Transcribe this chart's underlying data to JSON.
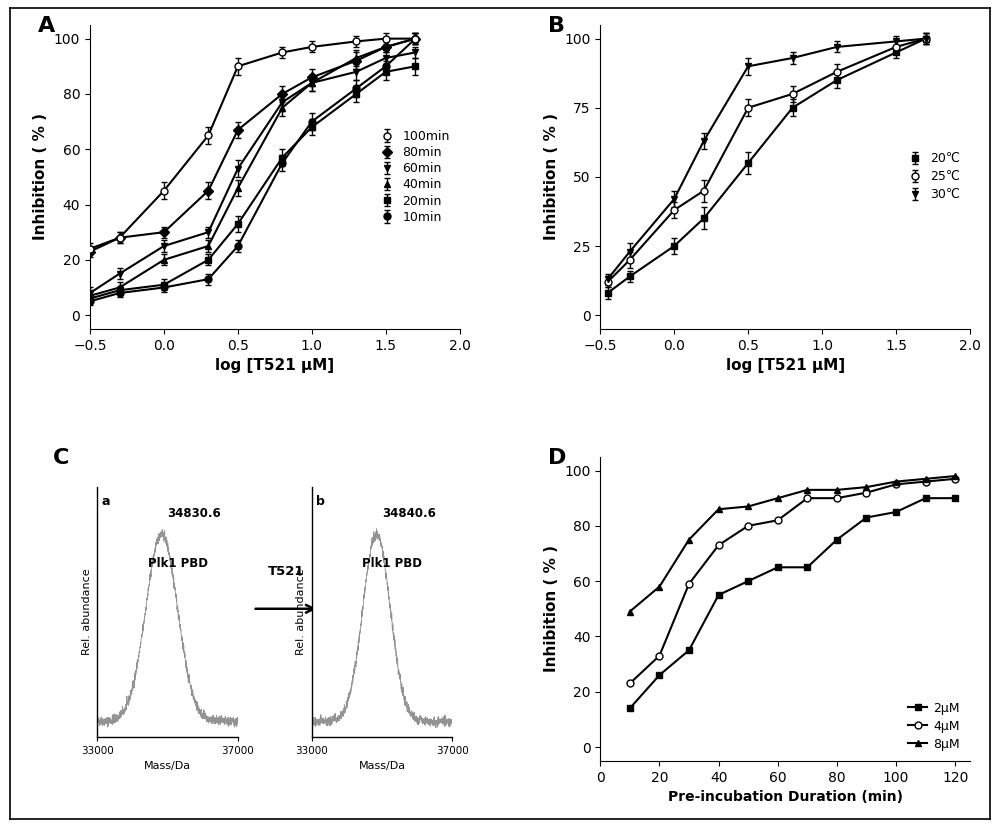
{
  "panel_A": {
    "label": "A",
    "xlabel": "log [T521 μM]",
    "ylabel": "Inhibition ( % )",
    "xlim": [
      -0.5,
      2.0
    ],
    "ylim": [
      -5,
      105
    ],
    "yticks": [
      0,
      20,
      40,
      60,
      80,
      100
    ],
    "xticks": [
      -0.5,
      0.0,
      0.5,
      1.0,
      1.5,
      2.0
    ],
    "series": [
      {
        "label": "10min",
        "marker": "o",
        "fillstyle": "full",
        "x": [
          -0.5,
          -0.3,
          0.0,
          0.3,
          0.5,
          0.8,
          1.0,
          1.3,
          1.5,
          1.7
        ],
        "y": [
          5,
          8,
          10,
          13,
          25,
          55,
          70,
          82,
          90,
          100
        ],
        "yerr": [
          1.5,
          1.5,
          1.5,
          2,
          2,
          3,
          3,
          3,
          2,
          2
        ]
      },
      {
        "label": "20min",
        "marker": "s",
        "fillstyle": "full",
        "x": [
          -0.5,
          -0.3,
          0.0,
          0.3,
          0.5,
          0.8,
          1.0,
          1.3,
          1.5,
          1.7
        ],
        "y": [
          6,
          9,
          11,
          20,
          33,
          57,
          68,
          80,
          88,
          90
        ],
        "yerr": [
          1.5,
          1.5,
          2,
          2,
          3,
          3,
          3,
          3,
          3,
          3
        ]
      },
      {
        "label": "40min",
        "marker": "^",
        "fillstyle": "full",
        "x": [
          -0.5,
          -0.3,
          0.0,
          0.3,
          0.5,
          0.8,
          1.0,
          1.3,
          1.5,
          1.7
        ],
        "y": [
          7,
          10,
          20,
          25,
          46,
          75,
          84,
          93,
          97,
          100
        ],
        "yerr": [
          1.5,
          2,
          2,
          2,
          3,
          3,
          3,
          3,
          2,
          2
        ]
      },
      {
        "label": "60min",
        "marker": "v",
        "fillstyle": "full",
        "x": [
          -0.5,
          -0.3,
          0.0,
          0.3,
          0.5,
          0.8,
          1.0,
          1.3,
          1.5,
          1.7
        ],
        "y": [
          8,
          15,
          25,
          30,
          53,
          77,
          84,
          88,
          93,
          95
        ],
        "yerr": [
          2,
          2,
          2,
          2,
          3,
          3,
          3,
          3,
          3,
          2
        ]
      },
      {
        "label": "80min",
        "marker": "D",
        "fillstyle": "full",
        "x": [
          -0.5,
          -0.3,
          0.0,
          0.3,
          0.5,
          0.8,
          1.0,
          1.3,
          1.5,
          1.7
        ],
        "y": [
          23,
          28,
          30,
          45,
          67,
          80,
          86,
          92,
          97,
          100
        ],
        "yerr": [
          2,
          2,
          2,
          3,
          3,
          3,
          3,
          3,
          2,
          2
        ]
      },
      {
        "label": "100min",
        "marker": "o",
        "fillstyle": "none",
        "x": [
          -0.5,
          -0.3,
          0.0,
          0.3,
          0.5,
          0.8,
          1.0,
          1.3,
          1.5,
          1.7
        ],
        "y": [
          24,
          28,
          45,
          65,
          90,
          95,
          97,
          99,
          100,
          100
        ],
        "yerr": [
          2,
          2,
          3,
          3,
          3,
          2,
          2,
          2,
          2,
          2
        ]
      }
    ]
  },
  "panel_B": {
    "label": "B",
    "xlabel": "log [T521 μM]",
    "ylabel": "Inhibition ( % )",
    "xlim": [
      -0.5,
      2.0
    ],
    "ylim": [
      -5,
      105
    ],
    "yticks": [
      0,
      25,
      50,
      75,
      100
    ],
    "xticks": [
      -0.5,
      0.0,
      0.5,
      1.0,
      1.5,
      2.0
    ],
    "series": [
      {
        "label": "20℃",
        "marker": "s",
        "fillstyle": "full",
        "x": [
          -0.45,
          -0.3,
          0.0,
          0.2,
          0.5,
          0.8,
          1.1,
          1.5,
          1.7
        ],
        "y": [
          8,
          14,
          25,
          35,
          55,
          75,
          85,
          95,
          100
        ],
        "yerr": [
          2,
          2,
          3,
          4,
          4,
          3,
          3,
          2,
          2
        ]
      },
      {
        "label": "25℃",
        "marker": "o",
        "fillstyle": "none",
        "x": [
          -0.45,
          -0.3,
          0.0,
          0.2,
          0.5,
          0.8,
          1.1,
          1.5,
          1.7
        ],
        "y": [
          12,
          20,
          38,
          45,
          75,
          80,
          88,
          97,
          100
        ],
        "yerr": [
          2,
          3,
          3,
          4,
          3,
          3,
          3,
          2,
          2
        ]
      },
      {
        "label": "30℃",
        "marker": "v",
        "fillstyle": "full",
        "x": [
          -0.45,
          -0.3,
          0.0,
          0.2,
          0.5,
          0.8,
          1.1,
          1.5,
          1.7
        ],
        "y": [
          13,
          23,
          42,
          63,
          90,
          93,
          97,
          99,
          100
        ],
        "yerr": [
          2,
          3,
          3,
          3,
          3,
          2,
          2,
          2,
          2
        ]
      }
    ]
  },
  "panel_D": {
    "label": "D",
    "xlabel": "Pre-incubation Duration (min)",
    "ylabel": "Inhibition ( % )",
    "xlim": [
      0,
      125
    ],
    "ylim": [
      -5,
      105
    ],
    "yticks": [
      0,
      20,
      40,
      60,
      80,
      100
    ],
    "xticks": [
      0,
      20,
      40,
      60,
      80,
      100,
      120
    ],
    "series": [
      {
        "label": "2μM",
        "marker": "s",
        "fillstyle": "full",
        "x": [
          10,
          20,
          30,
          40,
          50,
          60,
          70,
          80,
          90,
          100,
          110,
          120
        ],
        "y": [
          14,
          26,
          35,
          55,
          60,
          65,
          65,
          75,
          83,
          85,
          90,
          90
        ]
      },
      {
        "label": "4μM",
        "marker": "o",
        "fillstyle": "none",
        "x": [
          10,
          20,
          30,
          40,
          50,
          60,
          70,
          80,
          90,
          100,
          110,
          120
        ],
        "y": [
          23,
          33,
          59,
          73,
          80,
          82,
          90,
          90,
          92,
          95,
          96,
          97
        ]
      },
      {
        "label": "8μM",
        "marker": "^",
        "fillstyle": "full",
        "x": [
          10,
          20,
          30,
          40,
          50,
          60,
          70,
          80,
          90,
          100,
          110,
          120
        ],
        "y": [
          49,
          58,
          75,
          86,
          87,
          90,
          93,
          93,
          94,
          96,
          97,
          98
        ]
      }
    ]
  },
  "panel_C": {
    "label": "C",
    "sub_a_peak": 34830.6,
    "sub_b_peak": 34840.6,
    "sub_a_label": "Plk1 PBD",
    "sub_b_label": "Plk1 PBD",
    "arrow_label": "T521",
    "x_min": 33000,
    "x_max": 37000,
    "xlabel": "Mass/Da"
  },
  "bg_color": "#efefef",
  "line_color": "black",
  "marker_size": 5,
  "fontsize": 10,
  "panel_label_fontsize": 16
}
